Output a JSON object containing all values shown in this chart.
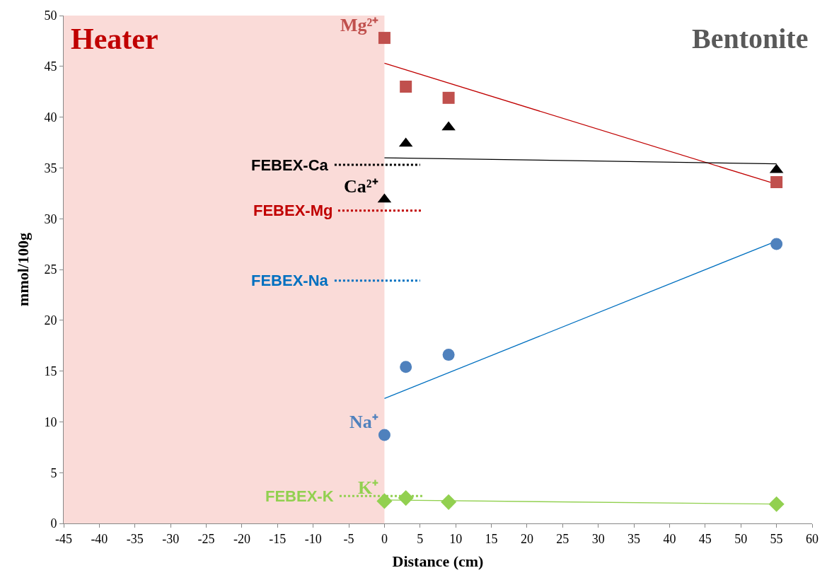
{
  "chart_data": {
    "type": "scatter",
    "xlabel": "Distance (cm)",
    "ylabel": "mmol/100g",
    "xlim": [
      -45,
      60
    ],
    "xticks": [
      -45,
      -40,
      -35,
      -30,
      -25,
      -20,
      -15,
      -10,
      -5,
      0,
      5,
      10,
      15,
      20,
      25,
      30,
      35,
      40,
      45,
      50,
      55,
      60
    ],
    "ylim": [
      0,
      50
    ],
    "yticks": [
      0,
      5,
      10,
      15,
      20,
      25,
      30,
      35,
      40,
      45,
      50
    ],
    "grid": false,
    "bands": [
      {
        "axis": "x",
        "from": -45,
        "to": 0,
        "label": "Heater",
        "color": "#fadbd8"
      }
    ],
    "annotations": [
      "Bentonite"
    ],
    "series": [
      {
        "type": "line",
        "color": "#c00000",
        "x": [
          0,
          55
        ],
        "values": [
          45.3,
          33.4
        ],
        "line_style": "solid"
      },
      {
        "type": "line",
        "color": "#000000",
        "x": [
          0,
          55
        ],
        "values": [
          36.0,
          35.4
        ],
        "line_style": "solid"
      },
      {
        "type": "line",
        "color": "#0070c0",
        "x": [
          0,
          55
        ],
        "values": [
          12.3,
          27.8
        ],
        "line_style": "solid"
      },
      {
        "type": "line",
        "color": "#92d050",
        "x": [
          0,
          55
        ],
        "values": [
          2.3,
          1.9
        ],
        "line_style": "solid"
      },
      {
        "type": "line",
        "name": "FEBEX-Ca",
        "color": "#000000",
        "x": [
          -7,
          5
        ],
        "values": [
          35.3,
          35.3
        ],
        "line_style": "dotted"
      },
      {
        "type": "line",
        "name": "FEBEX-Mg",
        "color": "#c00000",
        "x": [
          -6.5,
          5.3
        ],
        "values": [
          30.8,
          30.8
        ],
        "line_style": "dotted"
      },
      {
        "type": "line",
        "name": "FEBEX-Na",
        "color": "#0070c0",
        "x": [
          -7,
          5
        ],
        "values": [
          23.9,
          23.9
        ],
        "line_style": "dotted"
      },
      {
        "type": "line",
        "name": "FEBEX-K",
        "color": "#92d050",
        "x": [
          -6.3,
          5.5
        ],
        "values": [
          2.7,
          2.7
        ],
        "line_style": "dotted"
      },
      {
        "name": "Mg²⁺",
        "color": "#c0504d",
        "marker": "square",
        "x": [
          0,
          3,
          9,
          55
        ],
        "values": [
          47.8,
          43.0,
          41.9,
          33.6
        ]
      },
      {
        "name": "Ca²⁺",
        "color": "#000000",
        "marker": "triangle",
        "x": [
          0,
          3,
          9,
          55
        ],
        "values": [
          31.9,
          37.4,
          39.0,
          34.8
        ]
      },
      {
        "name": "Na⁺",
        "color": "#4f81bd",
        "marker": "circle",
        "x": [
          0,
          3,
          9,
          55
        ],
        "values": [
          8.7,
          15.4,
          16.6,
          27.5
        ]
      },
      {
        "name": "K⁺",
        "color": "#92d050",
        "marker": "diamond",
        "x": [
          0,
          3,
          9,
          55
        ],
        "values": [
          2.2,
          2.5,
          2.1,
          1.9
        ]
      }
    ]
  }
}
